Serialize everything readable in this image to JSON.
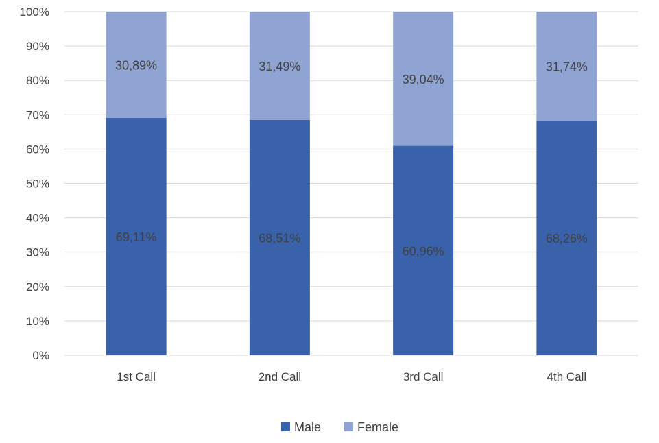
{
  "chart_data": {
    "type": "bar",
    "stacked": true,
    "percent_stacked": true,
    "categories": [
      "1st Call",
      "2nd Call",
      "3rd Call",
      "4th Call"
    ],
    "series": [
      {
        "name": "Male",
        "color": "#3a62ab",
        "values": [
          69.11,
          68.51,
          60.96,
          68.26
        ],
        "labels": [
          "69,11%",
          "68,51%",
          "60,96%",
          "68,26%"
        ]
      },
      {
        "name": "Female",
        "color": "#90a4d4",
        "values": [
          30.89,
          31.49,
          39.04,
          31.74
        ],
        "labels": [
          "30,89%",
          "31,49%",
          "39,04%",
          "31,74%"
        ]
      }
    ],
    "y_ticks": [
      "0%",
      "10%",
      "20%",
      "30%",
      "40%",
      "50%",
      "60%",
      "70%",
      "80%",
      "90%",
      "100%"
    ],
    "ylim": [
      0,
      100
    ],
    "grid": true,
    "legend_position": "bottom",
    "title": "",
    "xlabel": "",
    "ylabel": ""
  }
}
